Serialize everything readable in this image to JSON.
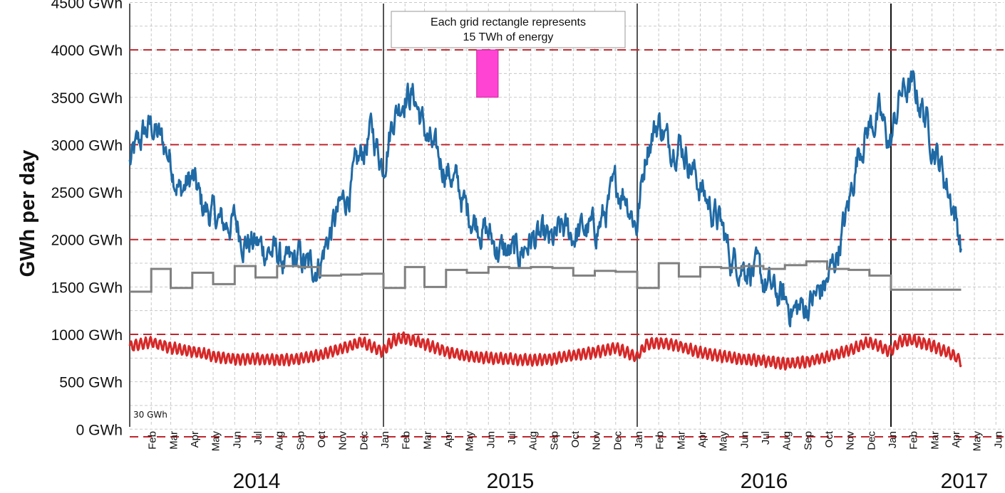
{
  "chart_data": {
    "type": "line",
    "ylabel": "GWh per day",
    "ylim": [
      -80,
      4500
    ],
    "ytick_labels": [
      "0 GWh",
      "500 GWh",
      "1000 GWh",
      "1500 GWh",
      "2000 GWh",
      "2500 GWh",
      "3000 GWh",
      "3500 GWh",
      "4000 GWh",
      "4500 GWh"
    ],
    "ytick_values": [
      0,
      500,
      1000,
      1500,
      2000,
      2500,
      3000,
      3500,
      4000,
      4500
    ],
    "dashed_reference_lines": [
      -80,
      1000,
      2000,
      3000,
      4000
    ],
    "dashed_line_color": "#c0262d",
    "months": [
      "Jan",
      "Feb",
      "Mar",
      "Apr",
      "May",
      "Jun",
      "Jul",
      "Aug",
      "Sep",
      "Oct",
      "Nov",
      "Dec"
    ],
    "x_month_labels": [
      "Feb",
      "Mar",
      "Apr",
      "May",
      "Jun",
      "Jul",
      "Aug",
      "Sep",
      "Oct",
      "Nov",
      "Dec",
      "Jan",
      "Feb",
      "Mar",
      "Apr",
      "May",
      "Jun",
      "Jul",
      "Aug",
      "Sep",
      "Oct",
      "Nov",
      "Dec",
      "Jan",
      "Feb",
      "Mar",
      "Apr",
      "May",
      "Jun",
      "Jul",
      "Aug",
      "Sep",
      "Oct",
      "Nov",
      "Dec",
      "Jan",
      "Feb",
      "Mar",
      "Apr",
      "May",
      "Jun"
    ],
    "years": [
      "2014",
      "2015",
      "2016",
      "2017"
    ],
    "x_range": [
      "2014-01-01",
      "2017-06-30"
    ],
    "annotation": {
      "lines": [
        "Each grid rectangle represents",
        "15 TWh of energy"
      ],
      "example_rectangle_color": "#ff44d4",
      "example_rectangle_x": [
        "2015-05-15",
        "2015-06-15"
      ],
      "example_rectangle_y": [
        3500,
        4000
      ]
    },
    "floor_label": "30 GWh",
    "series": [
      {
        "color": "#1f6aa5",
        "style": "noisy",
        "points": [
          [
            "2014-01-01",
            2800
          ],
          [
            "2014-01-20",
            3100
          ],
          [
            "2014-02-01",
            3200
          ],
          [
            "2014-02-15",
            3050
          ],
          [
            "2014-03-01",
            2850
          ],
          [
            "2014-03-15",
            2500
          ],
          [
            "2014-04-01",
            2650
          ],
          [
            "2014-04-15",
            2350
          ],
          [
            "2014-05-01",
            2250
          ],
          [
            "2014-05-15",
            2150
          ],
          [
            "2014-06-01",
            2200
          ],
          [
            "2014-06-15",
            2000
          ],
          [
            "2014-07-01",
            1950
          ],
          [
            "2014-07-15",
            1900
          ],
          [
            "2014-08-01",
            1850
          ],
          [
            "2014-08-15",
            1700
          ],
          [
            "2014-09-01",
            1800
          ],
          [
            "2014-09-15",
            1700
          ],
          [
            "2014-10-01",
            1750
          ],
          [
            "2014-10-15",
            2050
          ],
          [
            "2014-11-01",
            2350
          ],
          [
            "2014-11-15",
            2550
          ],
          [
            "2014-12-01",
            2900
          ],
          [
            "2014-12-15",
            3150
          ],
          [
            "2014-12-31",
            2800
          ],
          [
            "2015-01-15",
            3300
          ],
          [
            "2015-02-01",
            3550
          ],
          [
            "2015-02-15",
            3500
          ],
          [
            "2015-03-01",
            3150
          ],
          [
            "2015-03-15",
            2900
          ],
          [
            "2015-04-01",
            2750
          ],
          [
            "2015-04-15",
            2600
          ],
          [
            "2015-05-01",
            2300
          ],
          [
            "2015-05-15",
            2200
          ],
          [
            "2015-06-01",
            2050
          ],
          [
            "2015-06-15",
            1900
          ],
          [
            "2015-07-01",
            1850
          ],
          [
            "2015-07-15",
            1850
          ],
          [
            "2015-08-01",
            2000
          ],
          [
            "2015-08-15",
            2000
          ],
          [
            "2015-09-01",
            1950
          ],
          [
            "2015-09-15",
            2100
          ],
          [
            "2015-10-01",
            2050
          ],
          [
            "2015-10-15",
            2100
          ],
          [
            "2015-11-01",
            2100
          ],
          [
            "2015-11-15",
            2250
          ],
          [
            "2015-12-01",
            2550
          ],
          [
            "2015-12-15",
            2500
          ],
          [
            "2015-12-31",
            2150
          ],
          [
            "2016-01-15",
            3000
          ],
          [
            "2016-02-01",
            3250
          ],
          [
            "2016-02-15",
            3000
          ],
          [
            "2016-03-01",
            3050
          ],
          [
            "2016-03-15",
            2850
          ],
          [
            "2016-04-01",
            2550
          ],
          [
            "2016-04-15",
            2350
          ],
          [
            "2016-05-01",
            2150
          ],
          [
            "2016-05-15",
            1800
          ],
          [
            "2016-06-01",
            1750
          ],
          [
            "2016-06-15",
            1700
          ],
          [
            "2016-07-01",
            1550
          ],
          [
            "2016-07-15",
            1450
          ],
          [
            "2016-08-01",
            1350
          ],
          [
            "2016-08-15",
            1250
          ],
          [
            "2016-09-01",
            1300
          ],
          [
            "2016-09-15",
            1400
          ],
          [
            "2016-10-01",
            1550
          ],
          [
            "2016-10-15",
            1850
          ],
          [
            "2016-11-01",
            2350
          ],
          [
            "2016-11-15",
            2950
          ],
          [
            "2016-12-01",
            3200
          ],
          [
            "2016-12-15",
            3300
          ],
          [
            "2016-12-31",
            3000
          ],
          [
            "2017-01-15",
            3550
          ],
          [
            "2017-02-01",
            3600
          ],
          [
            "2017-02-15",
            3400
          ],
          [
            "2017-03-01",
            3050
          ],
          [
            "2017-03-15",
            2750
          ],
          [
            "2017-04-01",
            2350
          ],
          [
            "2017-04-12",
            1950
          ]
        ]
      },
      {
        "color": "#808080",
        "style": "step",
        "points": [
          [
            "2014-01-01",
            1450
          ],
          [
            "2014-02-01",
            1690
          ],
          [
            "2014-03-01",
            1490
          ],
          [
            "2014-04-01",
            1650
          ],
          [
            "2014-05-01",
            1530
          ],
          [
            "2014-06-01",
            1720
          ],
          [
            "2014-07-01",
            1600
          ],
          [
            "2014-08-01",
            1720
          ],
          [
            "2014-09-01",
            1710
          ],
          [
            "2014-10-01",
            1620
          ],
          [
            "2014-11-01",
            1630
          ],
          [
            "2014-12-01",
            1640
          ],
          [
            "2015-01-01",
            1490
          ],
          [
            "2015-02-01",
            1710
          ],
          [
            "2015-03-01",
            1500
          ],
          [
            "2015-04-01",
            1680
          ],
          [
            "2015-05-01",
            1650
          ],
          [
            "2015-06-01",
            1710
          ],
          [
            "2015-07-01",
            1700
          ],
          [
            "2015-08-01",
            1710
          ],
          [
            "2015-09-01",
            1700
          ],
          [
            "2015-10-01",
            1620
          ],
          [
            "2015-11-01",
            1670
          ],
          [
            "2015-12-01",
            1660
          ],
          [
            "2016-01-01",
            1490
          ],
          [
            "2016-02-01",
            1750
          ],
          [
            "2016-03-01",
            1610
          ],
          [
            "2016-04-01",
            1710
          ],
          [
            "2016-05-01",
            1700
          ],
          [
            "2016-06-01",
            1720
          ],
          [
            "2016-07-01",
            1690
          ],
          [
            "2016-08-01",
            1730
          ],
          [
            "2016-09-01",
            1770
          ],
          [
            "2016-10-01",
            1690
          ],
          [
            "2016-11-01",
            1680
          ],
          [
            "2016-12-01",
            1620
          ],
          [
            "2017-01-01",
            1470
          ],
          [
            "2017-04-12",
            1470
          ]
        ]
      },
      {
        "color": "#d62828",
        "style": "weekly",
        "points": [
          [
            "2014-01-01",
            870
          ],
          [
            "2014-02-01",
            920
          ],
          [
            "2014-03-01",
            860
          ],
          [
            "2014-04-01",
            820
          ],
          [
            "2014-05-01",
            770
          ],
          [
            "2014-06-01",
            740
          ],
          [
            "2014-07-01",
            740
          ],
          [
            "2014-08-01",
            730
          ],
          [
            "2014-09-01",
            740
          ],
          [
            "2014-10-01",
            780
          ],
          [
            "2014-11-01",
            850
          ],
          [
            "2014-12-01",
            920
          ],
          [
            "2014-12-31",
            820
          ],
          [
            "2015-01-15",
            940
          ],
          [
            "2015-02-01",
            960
          ],
          [
            "2015-03-01",
            900
          ],
          [
            "2015-04-01",
            820
          ],
          [
            "2015-05-01",
            770
          ],
          [
            "2015-06-01",
            750
          ],
          [
            "2015-07-01",
            740
          ],
          [
            "2015-08-01",
            730
          ],
          [
            "2015-09-01",
            740
          ],
          [
            "2015-10-01",
            780
          ],
          [
            "2015-11-01",
            810
          ],
          [
            "2015-12-01",
            860
          ],
          [
            "2015-12-31",
            760
          ],
          [
            "2016-01-15",
            900
          ],
          [
            "2016-02-01",
            910
          ],
          [
            "2016-03-01",
            880
          ],
          [
            "2016-04-01",
            810
          ],
          [
            "2016-05-01",
            770
          ],
          [
            "2016-06-01",
            740
          ],
          [
            "2016-07-01",
            720
          ],
          [
            "2016-08-01",
            690
          ],
          [
            "2016-09-01",
            710
          ],
          [
            "2016-10-01",
            760
          ],
          [
            "2016-11-01",
            830
          ],
          [
            "2016-12-01",
            920
          ],
          [
            "2016-12-31",
            820
          ],
          [
            "2017-01-15",
            930
          ],
          [
            "2017-02-01",
            940
          ],
          [
            "2017-03-01",
            880
          ],
          [
            "2017-04-01",
            780
          ],
          [
            "2017-04-12",
            720
          ]
        ]
      }
    ]
  }
}
